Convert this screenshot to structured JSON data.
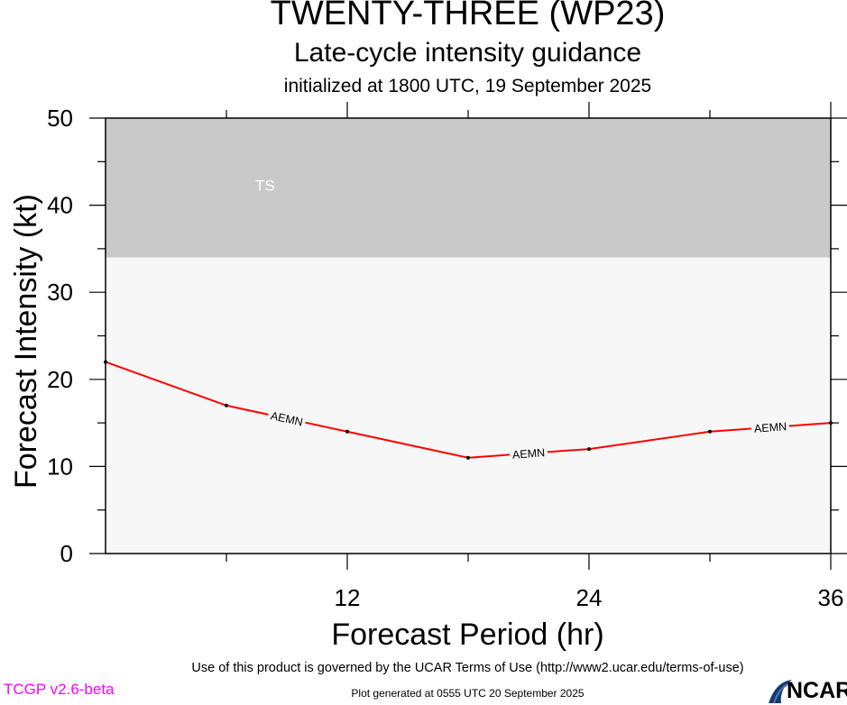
{
  "chart_data": {
    "type": "line",
    "title": "TWENTY-THREE (WP23)",
    "subtitle": "Late-cycle intensity guidance",
    "initialized": "initialized at 1800 UTC, 19 September 2025",
    "xlabel": "Forecast Period (hr)",
    "ylabel": "Forecast Intensity (kt)",
    "xlim": [
      0,
      36
    ],
    "ylim": [
      0,
      50
    ],
    "x_ticks": [
      12,
      24,
      36
    ],
    "y_ticks": [
      0,
      10,
      20,
      30,
      40,
      50
    ],
    "bands": [
      {
        "label": "TS",
        "y_from": 34,
        "y_to": 50,
        "color": "#c9c9c9"
      }
    ],
    "plot_background": "#f7f7f7",
    "series": [
      {
        "name": "AEMN",
        "color": "#ff0000",
        "x": [
          0,
          6,
          12,
          18,
          24,
          30,
          36
        ],
        "values": [
          22,
          17,
          14,
          11,
          12,
          14,
          15
        ]
      }
    ]
  },
  "footer": {
    "terms": "Use of this product is governed by the UCAR Terms of Use (http://www2.ucar.edu/terms-of-use)",
    "version": "TCGP v2.6-beta",
    "generated": "Plot generated at 0555 UTC   20 September 2025",
    "logo": "NCAR",
    "version_color": "#ff00ff"
  }
}
